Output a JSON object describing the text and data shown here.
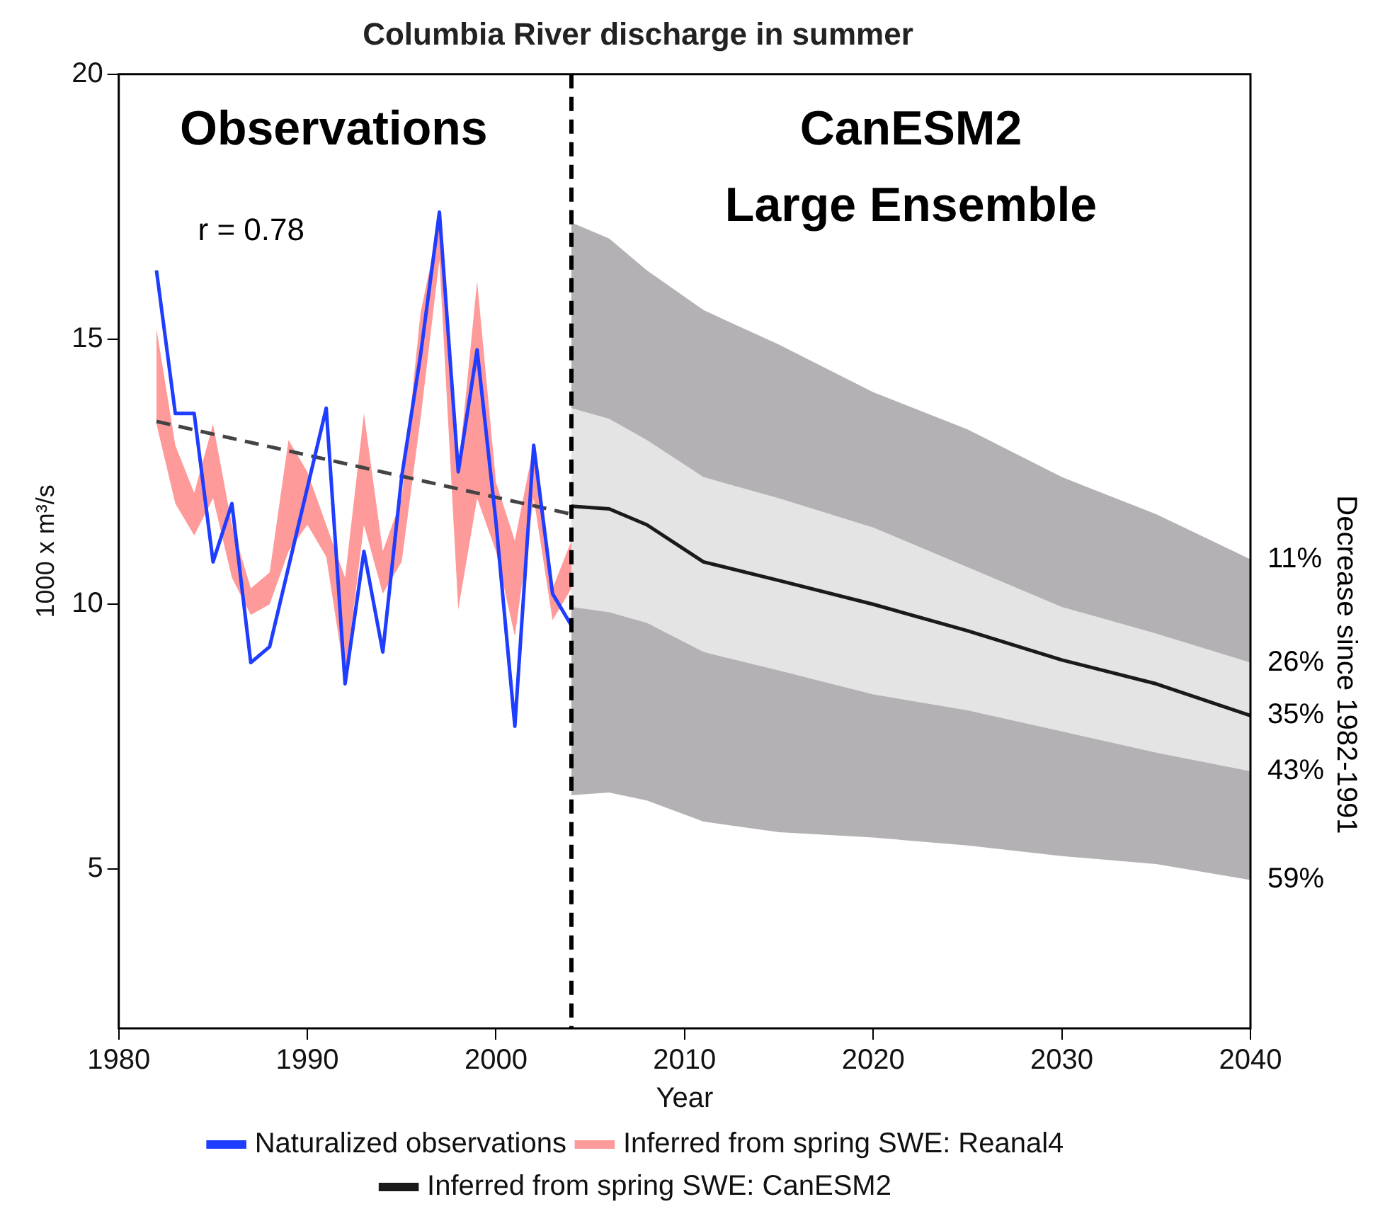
{
  "chart_data": {
    "type": "line",
    "title": "Columbia River discharge in summer",
    "xlabel": "Year",
    "ylabel": "1000 x m³/s",
    "y2label": "Decrease since 1982-1991",
    "xlim": [
      1980,
      2040
    ],
    "xticks": [
      1980,
      1990,
      2000,
      2010,
      2020,
      2030,
      2040
    ],
    "ylim": [
      2,
      20
    ],
    "yticks": [
      5,
      10,
      15,
      20
    ],
    "grid": false,
    "legend": "bottom",
    "ref_lines": [
      {
        "axis": "x",
        "value": 2004,
        "color": "#000000",
        "line_style": "dashed"
      }
    ],
    "annotations": [
      "Observations",
      "CanESM2",
      "Large Ensemble",
      "r = 0.78",
      "11%",
      "26%",
      "35%",
      "43%",
      "59%"
    ],
    "series": [
      {
        "type": "area",
        "color": "#b4b1b4",
        "x": [
          2004,
          2006,
          2008,
          2011,
          2015,
          2020,
          2025,
          2030,
          2035,
          2040
        ],
        "values": [
          null,
          null,
          null,
          null,
          null,
          null,
          null,
          null,
          null,
          null
        ],
        "lower": [
          6.4,
          6.45,
          6.3,
          5.9,
          5.7,
          5.6,
          5.45,
          5.25,
          5.1,
          4.8
        ],
        "upper": [
          17.2,
          16.9,
          16.3,
          15.55,
          14.9,
          14.0,
          13.3,
          12.4,
          11.7,
          10.85
        ]
      },
      {
        "type": "area",
        "color": "#e4e4e4",
        "x": [
          2004,
          2006,
          2008,
          2011,
          2015,
          2020,
          2025,
          2030,
          2035,
          2040
        ],
        "values": [
          null,
          null,
          null,
          null,
          null,
          null,
          null,
          null,
          null,
          null
        ],
        "lower": [
          9.95,
          9.85,
          9.65,
          9.1,
          8.75,
          8.3,
          8.0,
          7.6,
          7.2,
          6.85
        ],
        "upper": [
          13.7,
          13.5,
          13.1,
          12.4,
          12.0,
          11.45,
          10.7,
          9.95,
          9.45,
          8.9
        ]
      },
      {
        "type": "area",
        "name": "Inferred from spring SWE: Reanal4",
        "color": "#ff9a9a",
        "x": [
          1982,
          1983,
          1984,
          1985,
          1986,
          1987,
          1988,
          1989,
          1990,
          1991,
          1992,
          1993,
          1994,
          1995,
          1996,
          1997,
          1998,
          1999,
          2000,
          2001,
          2002,
          2003,
          2004
        ],
        "values": [
          null,
          null,
          null,
          null,
          null,
          null,
          null,
          null,
          null,
          null,
          null,
          null,
          null,
          null,
          null,
          null,
          null,
          null,
          null,
          null,
          null,
          null,
          null
        ],
        "lower": [
          13.4,
          11.9,
          11.3,
          12.0,
          10.5,
          9.8,
          10.0,
          11.0,
          11.5,
          10.9,
          8.6,
          11.5,
          10.2,
          10.8,
          13.5,
          16.5,
          9.9,
          12.0,
          11.0,
          9.4,
          12.0,
          9.7,
          10.3
        ],
        "upper": [
          15.2,
          13.0,
          12.1,
          13.4,
          11.5,
          10.3,
          10.6,
          13.1,
          12.5,
          11.5,
          10.5,
          13.6,
          11.0,
          12.0,
          15.5,
          17.2,
          12.5,
          16.1,
          12.3,
          11.2,
          13.0,
          10.3,
          11.2
        ]
      },
      {
        "type": "line",
        "name": "Inferred from spring SWE: CanESM2",
        "color": "#1a1a1a",
        "x": [
          2004,
          2006,
          2008,
          2011,
          2015,
          2020,
          2025,
          2030,
          2035,
          2040
        ],
        "values": [
          11.85,
          11.8,
          11.5,
          10.8,
          10.45,
          10.0,
          9.5,
          8.95,
          8.5,
          7.9
        ]
      },
      {
        "type": "line",
        "name": "Naturalized observations",
        "color": "#1f3dff",
        "x": [
          1982,
          1983,
          1984,
          1985,
          1986,
          1987,
          1988,
          1989,
          1990,
          1991,
          1992,
          1993,
          1994,
          1995,
          1996,
          1997,
          1998,
          1999,
          2000,
          2001,
          2002,
          2003,
          2004
        ],
        "values": [
          16.3,
          13.6,
          13.6,
          10.8,
          11.9,
          8.9,
          9.2,
          10.7,
          12.2,
          13.7,
          8.5,
          11.0,
          9.1,
          12.4,
          14.7,
          17.4,
          12.5,
          14.8,
          11.55,
          7.7,
          13.0,
          10.2,
          9.6
        ]
      },
      {
        "type": "line",
        "line_style": "dashed",
        "color": "#444444",
        "x": [
          1982,
          2004
        ],
        "values": [
          13.45,
          11.7
        ]
      }
    ]
  }
}
